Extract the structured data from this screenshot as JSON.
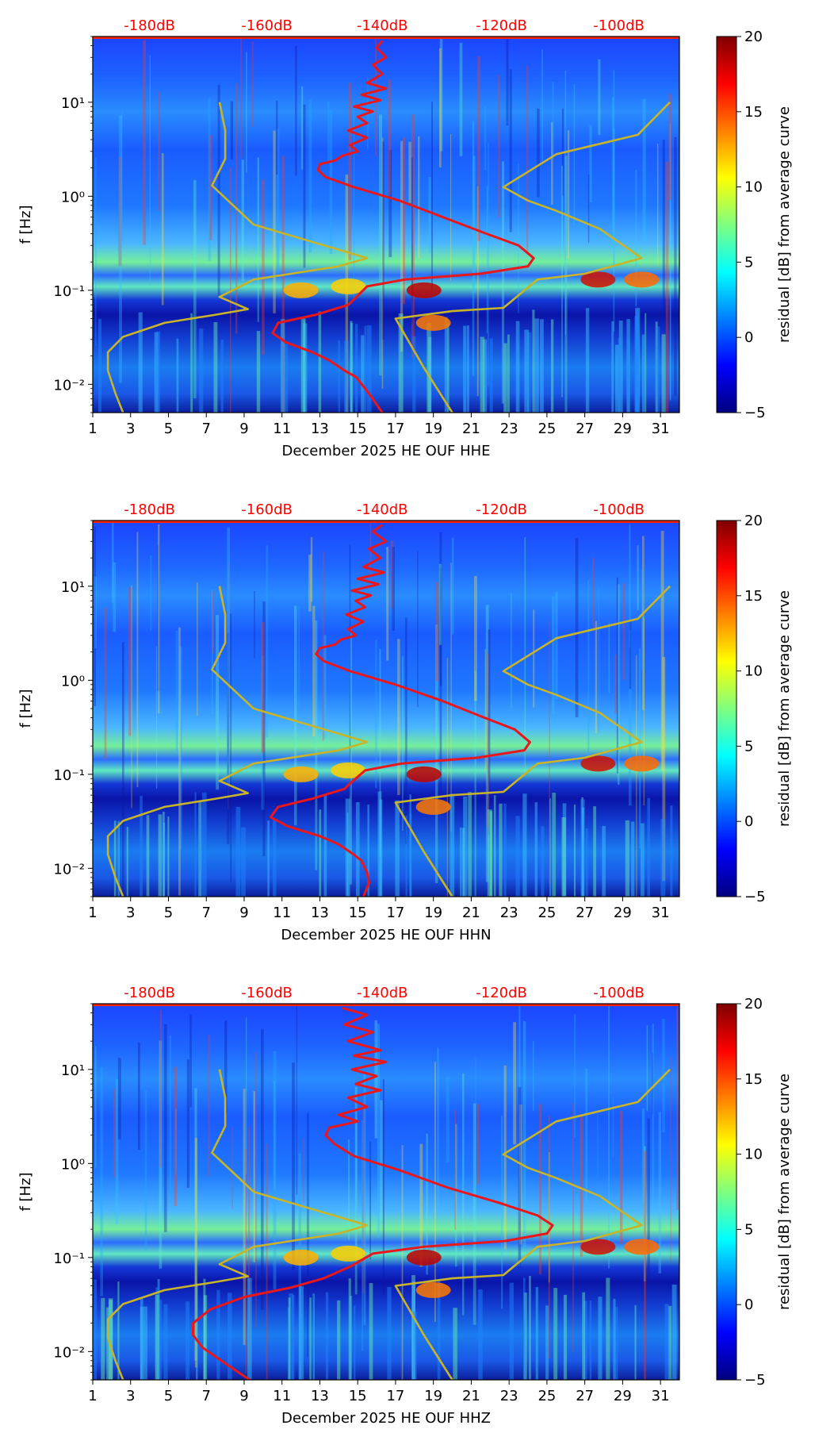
{
  "colors": {
    "red_curve": "#e8171b",
    "gold_curve": "#c8b428",
    "db_label": "#ff0000",
    "colormap": [
      "#00007f",
      "#0000ff",
      "#007fff",
      "#00ffff",
      "#7fff7f",
      "#ffff00",
      "#ff7f00",
      "#ff0000",
      "#7f0000"
    ]
  },
  "chart_data": [
    {
      "type": "heatmap",
      "panel": "HHE",
      "xlabel": "December 2025 HE OUF  HHE",
      "ylabel": "f [Hz]",
      "xticks": [
        "1",
        "3",
        "5",
        "7",
        "9",
        "11",
        "13",
        "15",
        "17",
        "19",
        "21",
        "23",
        "25",
        "27",
        "29",
        "31"
      ],
      "xlim": [
        1,
        32
      ],
      "yscale": "log",
      "ylim": [
        0.005,
        50
      ],
      "yticks": [
        0.01,
        0.1,
        1,
        10
      ],
      "yticklabels": [
        "10⁻²",
        "10⁻¹",
        "10⁰",
        "10¹"
      ],
      "top_labels": [
        "-180dB",
        "-160dB",
        "-140dB",
        "-120dB",
        "-100dB"
      ],
      "top_label_x": [
        4,
        10.2,
        16.3,
        22.6,
        28.8
      ],
      "colorbar": {
        "label": "residual [dB] from average curve",
        "ticks": [
          -5,
          0,
          5,
          10,
          15,
          20
        ],
        "range": [
          -5,
          20
        ]
      },
      "series": [
        {
          "name": "red",
          "x": [
            16.3,
            16.0,
            16.5,
            15.8,
            16.3,
            15.5,
            16.5,
            15.2,
            16.2,
            14.8,
            15.8,
            15.0,
            15.5,
            14.5,
            15.5,
            14.6,
            15.0,
            14.2,
            13.8,
            13.0,
            12.9,
            13.3,
            14.8,
            17.2,
            19.5,
            21.8,
            23.5,
            24.3,
            24.0,
            21.5,
            17.5,
            15.5,
            14.8,
            14.5,
            12.8,
            10.8,
            10.5,
            11.2,
            12.6,
            13.5,
            14.3,
            14.9,
            15.4,
            15.8,
            16.3
          ],
          "y": [
            45,
            38,
            30,
            25,
            20,
            16,
            14,
            12,
            10.5,
            9,
            8,
            7,
            6,
            5,
            4.2,
            3.5,
            3,
            2.7,
            2.4,
            2.2,
            1.9,
            1.6,
            1.25,
            0.9,
            0.6,
            0.4,
            0.3,
            0.22,
            0.18,
            0.15,
            0.13,
            0.11,
            0.08,
            0.07,
            0.055,
            0.045,
            0.035,
            0.028,
            0.022,
            0.018,
            0.014,
            0.012,
            0.009,
            0.007,
            0.005
          ]
        },
        {
          "name": "gold",
          "x": [
            20.0,
            18.5,
            17.0,
            20.0,
            22.7,
            24.5,
            27.0,
            30.0,
            27.8,
            25.5,
            24.0,
            22.7,
            25.5,
            29.8,
            31.5
          ],
          "y": [
            0.005,
            0.015,
            0.05,
            0.06,
            0.065,
            0.13,
            0.15,
            0.22,
            0.45,
            0.7,
            0.9,
            1.25,
            2.8,
            4.5,
            10
          ]
        },
        {
          "name": "gold",
          "x": [
            2.6,
            2.2,
            1.8,
            1.8,
            2.6,
            4.8,
            7.5,
            9.2,
            7.7,
            9.5,
            14.0,
            15.5,
            9.5,
            7.3,
            8.0,
            8.0,
            7.7
          ],
          "y": [
            0.005,
            0.008,
            0.014,
            0.022,
            0.032,
            0.045,
            0.055,
            0.063,
            0.085,
            0.13,
            0.18,
            0.22,
            0.5,
            1.3,
            2.5,
            5,
            10
          ]
        }
      ]
    },
    {
      "type": "heatmap",
      "panel": "HHN",
      "xlabel": "December 2025 HE OUF  HHN",
      "ylabel": "f [Hz]",
      "xticks": [
        "1",
        "3",
        "5",
        "7",
        "9",
        "11",
        "13",
        "15",
        "17",
        "19",
        "21",
        "23",
        "25",
        "27",
        "29",
        "31"
      ],
      "xlim": [
        1,
        32
      ],
      "yscale": "log",
      "ylim": [
        0.005,
        50
      ],
      "yticks": [
        0.01,
        0.1,
        1,
        10
      ],
      "yticklabels": [
        "10⁻²",
        "10⁻¹",
        "10⁰",
        "10¹"
      ],
      "top_labels": [
        "-180dB",
        "-160dB",
        "-140dB",
        "-120dB",
        "-100dB"
      ],
      "top_label_x": [
        4,
        10.2,
        16.3,
        22.6,
        28.8
      ],
      "colorbar": {
        "label": "residual [dB] from average curve",
        "ticks": [
          -5,
          0,
          5,
          10,
          15,
          20
        ],
        "range": [
          -5,
          20
        ]
      },
      "series": [
        {
          "name": "red",
          "x": [
            16.3,
            15.8,
            16.5,
            15.6,
            16.2,
            15.3,
            16.4,
            15.0,
            16.1,
            14.7,
            15.7,
            14.9,
            15.4,
            14.4,
            15.3,
            14.5,
            14.9,
            14.1,
            13.8,
            13.0,
            12.8,
            13.2,
            14.6,
            17.0,
            19.5,
            21.7,
            23.3,
            24.1,
            23.8,
            21.3,
            17.3,
            15.4,
            14.6,
            14.3,
            12.6,
            10.8,
            10.4,
            11.3,
            13.0,
            14.0,
            14.8,
            15.2,
            15.5,
            15.6,
            15.3
          ],
          "y": [
            45,
            38,
            30,
            25,
            20,
            16,
            14,
            12,
            10.5,
            9,
            8,
            7,
            6,
            5,
            4.2,
            3.5,
            3,
            2.7,
            2.4,
            2.2,
            1.9,
            1.6,
            1.25,
            0.9,
            0.6,
            0.4,
            0.3,
            0.22,
            0.18,
            0.15,
            0.13,
            0.11,
            0.08,
            0.07,
            0.055,
            0.045,
            0.035,
            0.028,
            0.022,
            0.018,
            0.014,
            0.012,
            0.009,
            0.007,
            0.005
          ]
        },
        {
          "name": "gold",
          "x": [
            20.0,
            18.5,
            17.0,
            20.0,
            22.7,
            24.5,
            27.0,
            30.0,
            27.8,
            25.5,
            24.0,
            22.7,
            25.5,
            29.8,
            31.5
          ],
          "y": [
            0.005,
            0.015,
            0.05,
            0.06,
            0.065,
            0.13,
            0.15,
            0.22,
            0.45,
            0.7,
            0.9,
            1.25,
            2.8,
            4.5,
            10
          ]
        },
        {
          "name": "gold",
          "x": [
            2.6,
            2.2,
            1.8,
            1.8,
            2.6,
            4.8,
            7.5,
            9.2,
            7.7,
            9.5,
            14.0,
            15.5,
            9.5,
            7.3,
            8.0,
            8.0,
            7.7
          ],
          "y": [
            0.005,
            0.008,
            0.014,
            0.022,
            0.032,
            0.045,
            0.055,
            0.063,
            0.085,
            0.13,
            0.18,
            0.22,
            0.5,
            1.3,
            2.5,
            5,
            10
          ]
        }
      ]
    },
    {
      "type": "heatmap",
      "panel": "HHZ",
      "xlabel": "December 2025 HE OUF  HHZ",
      "ylabel": "f [Hz]",
      "xticks": [
        "1",
        "3",
        "5",
        "7",
        "9",
        "11",
        "13",
        "15",
        "17",
        "19",
        "21",
        "23",
        "25",
        "27",
        "29",
        "31"
      ],
      "xlim": [
        1,
        32
      ],
      "yscale": "log",
      "ylim": [
        0.005,
        50
      ],
      "yticks": [
        0.01,
        0.1,
        1,
        10
      ],
      "yticklabels": [
        "10⁻²",
        "10⁻¹",
        "10⁰",
        "10¹"
      ],
      "top_labels": [
        "-180dB",
        "-160dB",
        "-140dB",
        "-120dB",
        "-100dB"
      ],
      "top_label_x": [
        4,
        10.2,
        16.3,
        22.6,
        28.8
      ],
      "colorbar": {
        "label": "residual [dB] from average curve",
        "ticks": [
          -5,
          0,
          5,
          10,
          15,
          20
        ],
        "range": [
          -5,
          20
        ]
      },
      "series": [
        {
          "name": "red",
          "x": [
            14.2,
            15.5,
            14.3,
            15.8,
            14.5,
            16.2,
            14.8,
            16.5,
            14.7,
            16.0,
            14.9,
            16.2,
            14.5,
            15.5,
            14.0,
            15.0,
            13.5,
            13.3,
            13.8,
            14.8,
            17.2,
            19.8,
            22.5,
            24.5,
            25.3,
            25.0,
            22.8,
            18.5,
            15.8,
            14.6,
            13.2,
            11.5,
            9.0,
            7.2,
            6.3,
            6.3,
            6.8,
            7.8,
            8.7,
            9.3
          ],
          "y": [
            45,
            38,
            30,
            25,
            20,
            16,
            14,
            12,
            10,
            8.5,
            7,
            6,
            5,
            4,
            3.3,
            2.8,
            2.4,
            2.0,
            1.6,
            1.2,
            0.85,
            0.55,
            0.38,
            0.28,
            0.22,
            0.18,
            0.15,
            0.13,
            0.11,
            0.08,
            0.06,
            0.048,
            0.038,
            0.028,
            0.02,
            0.015,
            0.011,
            0.008,
            0.006,
            0.005
          ]
        },
        {
          "name": "gold",
          "x": [
            20.0,
            18.5,
            17.0,
            20.0,
            22.7,
            24.5,
            27.0,
            30.0,
            27.8,
            25.5,
            24.0,
            22.7,
            25.5,
            29.8,
            31.5
          ],
          "y": [
            0.005,
            0.015,
            0.05,
            0.06,
            0.065,
            0.13,
            0.15,
            0.22,
            0.45,
            0.7,
            0.9,
            1.25,
            2.8,
            4.5,
            10
          ]
        },
        {
          "name": "gold",
          "x": [
            2.6,
            2.2,
            1.8,
            1.8,
            2.6,
            4.8,
            7.5,
            9.2,
            7.7,
            9.5,
            14.0,
            15.5,
            9.5,
            7.3,
            8.0,
            8.0,
            7.7
          ],
          "y": [
            0.005,
            0.008,
            0.014,
            0.022,
            0.032,
            0.045,
            0.055,
            0.063,
            0.085,
            0.13,
            0.18,
            0.22,
            0.5,
            1.3,
            2.5,
            5,
            10
          ]
        }
      ]
    }
  ]
}
